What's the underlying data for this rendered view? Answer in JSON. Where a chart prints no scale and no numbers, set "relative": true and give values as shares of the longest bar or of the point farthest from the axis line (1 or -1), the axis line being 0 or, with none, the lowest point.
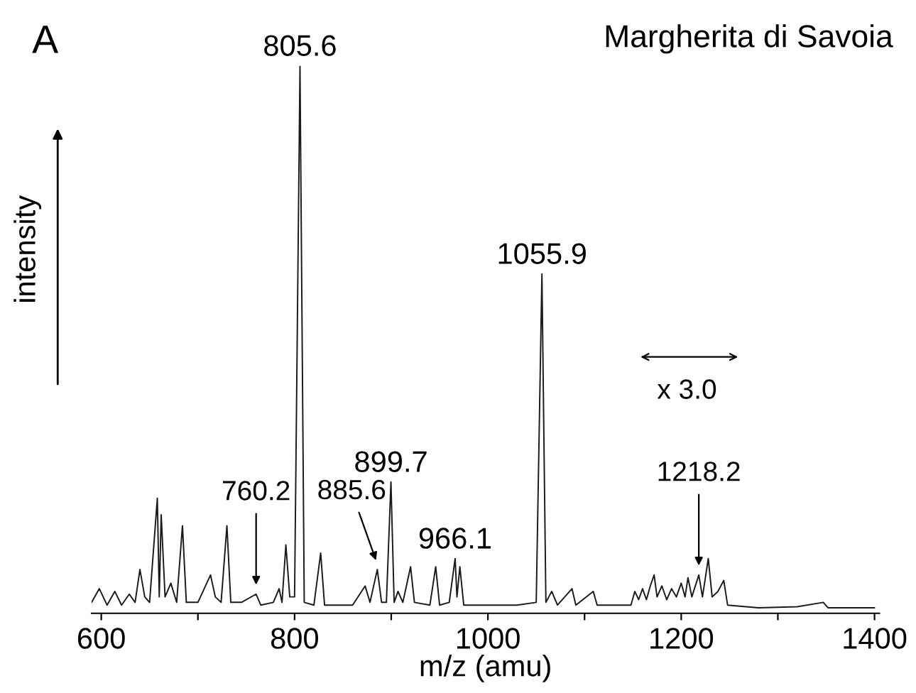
{
  "chart_data": {
    "type": "line",
    "title": "Margherita di Savoia",
    "xlabel": "m/z (amu)",
    "ylabel": "intensity",
    "relative": true,
    "color": "#1a1a1a",
    "xlim": [
      590,
      1405
    ],
    "xticks": [
      600,
      {
        "value": 700,
        "label": null
      },
      800,
      {
        "value": 900,
        "label": null
      },
      1000,
      {
        "value": 1100,
        "label": null
      },
      1200,
      {
        "value": 1300,
        "label": null
      },
      1400
    ],
    "x": [
      590,
      598,
      606,
      614,
      621,
      629,
      635,
      640,
      645,
      650,
      658,
      660,
      662,
      666,
      672,
      678,
      684,
      688,
      700,
      713,
      718,
      724,
      730,
      734,
      745,
      760.2,
      765,
      778,
      784,
      787,
      791,
      795,
      800,
      805.6,
      810,
      820,
      827,
      831,
      860,
      873,
      878,
      885.6,
      890,
      895,
      899.7,
      903,
      907,
      912,
      920,
      924,
      940,
      946,
      950,
      960,
      966.1,
      968,
      971,
      975,
      1000,
      1030,
      1050,
      1055.9,
      1060,
      1066,
      1072,
      1087,
      1091,
      1109,
      1113,
      1148,
      1152,
      1156,
      1160,
      1164,
      1168,
      1172,
      1175,
      1180,
      1185,
      1190,
      1195,
      1200,
      1204,
      1207,
      1211,
      1218.2,
      1222,
      1228,
      1232,
      1238,
      1244,
      1248,
      1280,
      1320,
      1347,
      1352,
      1400
    ],
    "values": [
      0.02,
      0.045,
      0.015,
      0.04,
      0.015,
      0.035,
      0.02,
      0.08,
      0.03,
      0.02,
      0.21,
      0.03,
      0.18,
      0.03,
      0.055,
      0.02,
      0.16,
      0.02,
      0.02,
      0.07,
      0.03,
      0.02,
      0.16,
      0.02,
      0.02,
      0.035,
      0.015,
      0.02,
      0.045,
      0.02,
      0.125,
      0.03,
      0.03,
      1,
      0.02,
      0.015,
      0.11,
      0.015,
      0.015,
      0.05,
      0.02,
      0.08,
      0.02,
      0.02,
      0.24,
      0.02,
      0.04,
      0.02,
      0.085,
      0.02,
      0.015,
      0.085,
      0.015,
      0.02,
      0.1,
      0.03,
      0.085,
      0.015,
      0.015,
      0.015,
      0.02,
      0.62,
      0.02,
      0.04,
      0.015,
      0.045,
      0.015,
      0.04,
      0.015,
      0.015,
      0.04,
      0.025,
      0.045,
      0.025,
      0.05,
      0.07,
      0.03,
      0.05,
      0.025,
      0.045,
      0.03,
      0.055,
      0.03,
      0.065,
      0.03,
      0.07,
      0.03,
      0.1,
      0.03,
      0.04,
      0.06,
      0.015,
      0.01,
      0.012,
      0.02,
      0.01,
      0.01
    ],
    "annotations": [
      "A",
      "x 3.0",
      {
        "text": "805.6",
        "x": 805.6,
        "y": 1
      },
      {
        "text": "1055.9",
        "x": 1055.9,
        "y": 0.62
      },
      {
        "text": "899.7",
        "x": 899.7,
        "y": 0.24
      },
      {
        "text": "966.1",
        "x": 966.1,
        "y": 0.1
      },
      {
        "text": "760.2",
        "x": 760.2,
        "y": 0.035
      },
      {
        "text": "885.6",
        "x": 885.6,
        "y": 0.08
      },
      {
        "text": "1218.2",
        "x": 1218.2,
        "y": 0.07
      }
    ]
  }
}
